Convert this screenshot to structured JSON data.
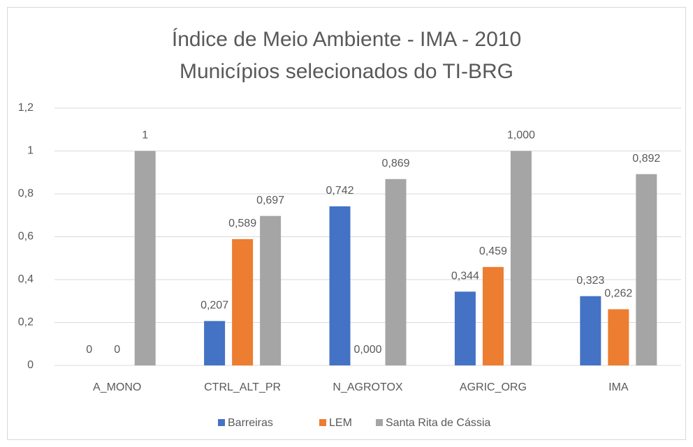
{
  "chart_data": {
    "type": "bar",
    "title": "Índice de Meio Ambiente - IMA - 2010",
    "subtitle": "Municípios selecionados do TI-BRG",
    "categories": [
      "A_MONO",
      "CTRL_ALT_PR",
      "N_AGROTOX",
      "AGRIC_ORG",
      "IMA"
    ],
    "series": [
      {
        "name": "Barreiras",
        "color": "#4472c4",
        "values": [
          0,
          0.207,
          0.742,
          0.344,
          0.323
        ],
        "value_labels": [
          "0",
          "0,207",
          "0,742",
          "0,344",
          "0,323"
        ]
      },
      {
        "name": "LEM",
        "color": "#ed7d31",
        "values": [
          0,
          0.589,
          0.0,
          0.459,
          0.262
        ],
        "value_labels": [
          "0",
          "0,589",
          "0,000",
          "0,459",
          "0,262"
        ]
      },
      {
        "name": "Santa Rita de Cássia",
        "color": "#a5a5a5",
        "values": [
          1,
          0.697,
          0.869,
          1.0,
          0.892
        ],
        "value_labels": [
          "1",
          "0,697",
          "0,869",
          "1,000",
          "0,892"
        ]
      }
    ],
    "ylim": [
      0,
      1.2
    ],
    "yticks": [
      0,
      {
        "value": 0.2,
        "label": "0,2"
      },
      {
        "value": 0.4,
        "label": "0,4"
      },
      {
        "value": 0.6,
        "label": "0,6"
      },
      {
        "value": 0.8,
        "label": "0,8"
      },
      1,
      {
        "value": 1.2,
        "label": "1,2"
      }
    ],
    "grid": true,
    "legend": "bottom"
  }
}
